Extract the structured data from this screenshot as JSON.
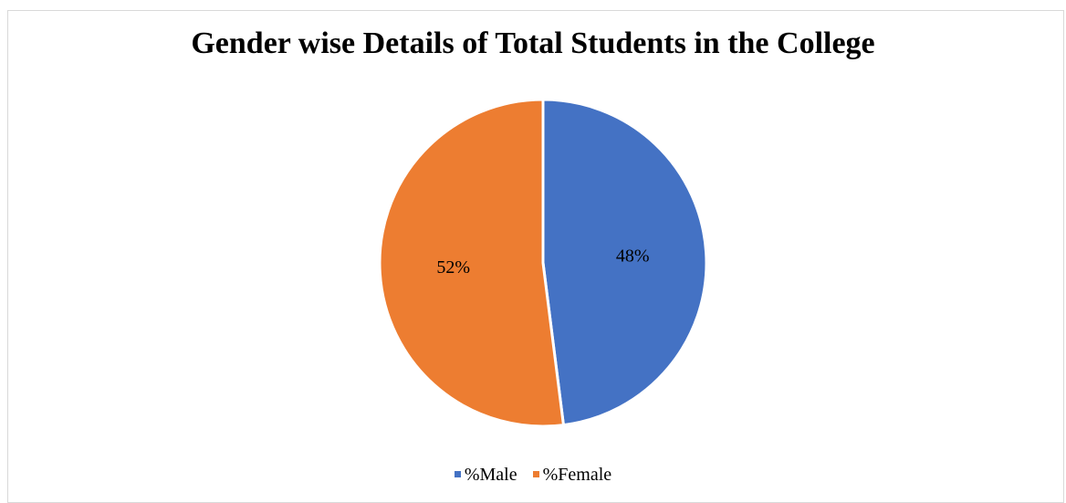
{
  "chart_data": {
    "type": "pie",
    "title": "Gender wise Details of Total Students in the College",
    "categories": [
      "%Male",
      "%Female"
    ],
    "values": [
      48,
      52
    ],
    "labels": [
      "48%",
      "52%"
    ],
    "colors": [
      "#4472C4",
      "#ED7D31"
    ],
    "legend_position": "bottom"
  }
}
